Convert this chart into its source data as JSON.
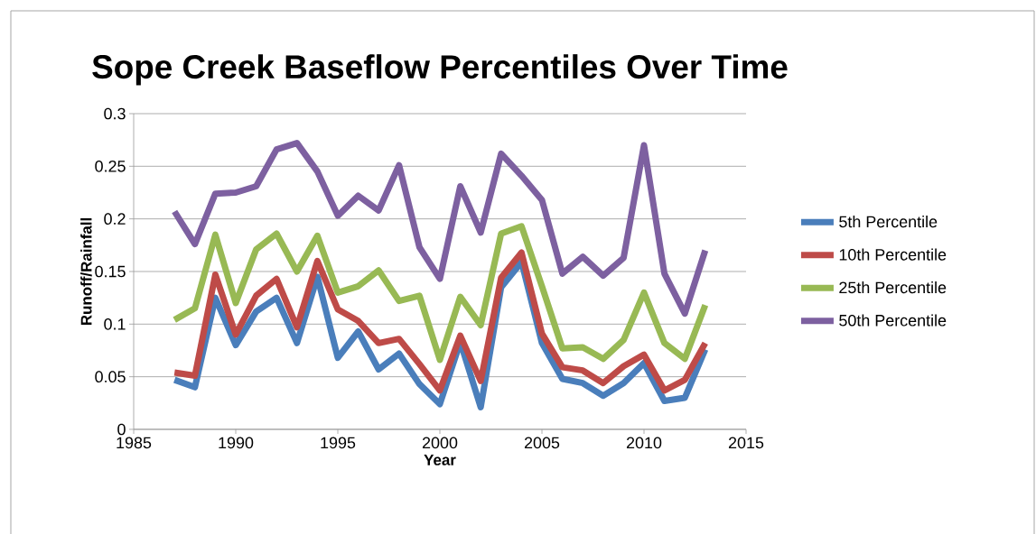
{
  "chart_data": {
    "type": "line",
    "title": "Sope Creek Baseflow Percentiles Over Time",
    "xlabel": "Year",
    "ylabel": "Runoff/Rainfall",
    "x": [
      1987,
      1988,
      1989,
      1990,
      1991,
      1992,
      1993,
      1994,
      1995,
      1996,
      1997,
      1998,
      1999,
      2000,
      2001,
      2002,
      2003,
      2004,
      2005,
      2006,
      2007,
      2008,
      2009,
      2010,
      2011,
      2012,
      2013
    ],
    "series": [
      {
        "name": "5th Percentile",
        "color": "#4a7ebb",
        "values": [
          0.047,
          0.04,
          0.125,
          0.08,
          0.112,
          0.125,
          0.082,
          0.145,
          0.068,
          0.093,
          0.057,
          0.072,
          0.043,
          0.024,
          0.083,
          0.021,
          0.135,
          0.159,
          0.082,
          0.048,
          0.044,
          0.032,
          0.044,
          0.063,
          0.027,
          0.03,
          0.076
        ]
      },
      {
        "name": "10th Percentile",
        "color": "#be4b48",
        "values": [
          0.054,
          0.051,
          0.147,
          0.09,
          0.127,
          0.143,
          0.097,
          0.16,
          0.114,
          0.103,
          0.082,
          0.086,
          0.062,
          0.037,
          0.089,
          0.046,
          0.144,
          0.168,
          0.091,
          0.059,
          0.056,
          0.044,
          0.06,
          0.071,
          0.037,
          0.047,
          0.082
        ]
      },
      {
        "name": "25th Percentile",
        "color": "#98b954",
        "values": [
          0.104,
          0.115,
          0.185,
          0.12,
          0.171,
          0.186,
          0.15,
          0.184,
          0.13,
          0.136,
          0.151,
          0.122,
          0.127,
          0.066,
          0.126,
          0.099,
          0.186,
          0.193,
          0.136,
          0.077,
          0.078,
          0.067,
          0.085,
          0.13,
          0.082,
          0.067,
          0.118
        ]
      },
      {
        "name": "50th Percentile",
        "color": "#7d60a0",
        "values": [
          0.207,
          0.176,
          0.224,
          0.225,
          0.231,
          0.266,
          0.272,
          0.245,
          0.203,
          0.222,
          0.208,
          0.251,
          0.173,
          0.143,
          0.231,
          0.187,
          0.262,
          0.241,
          0.218,
          0.148,
          0.164,
          0.146,
          0.163,
          0.27,
          0.148,
          0.11,
          0.17
        ]
      }
    ],
    "xlim": [
      1985,
      2015
    ],
    "xticks": [
      1985,
      1990,
      1995,
      2000,
      2005,
      2010,
      2015
    ],
    "ylim": [
      0,
      0.3
    ],
    "yticks": [
      0,
      0.05,
      0.1,
      0.15,
      0.2,
      0.25,
      0.3
    ],
    "grid": "y",
    "legend": "right",
    "line_style": "solid"
  }
}
